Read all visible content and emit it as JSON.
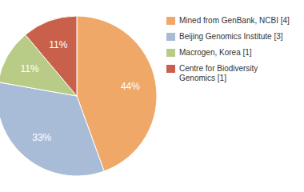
{
  "chart_data": {
    "type": "pie",
    "categories": [
      "Mined from GenBank, NCBI [4]",
      "Beijing Genomics Institute [3]",
      "Macrogen, Korea [1]",
      "Centre for Biodiversity\nGenomics [1]"
    ],
    "values": [
      44,
      33,
      11,
      11
    ],
    "value_labels": [
      "44%",
      "33%",
      "11%",
      "11%"
    ],
    "colors": [
      "#f0a868",
      "#a8bcd8",
      "#b8cc88",
      "#c8604c"
    ],
    "data_labels": true,
    "legend": "right"
  }
}
